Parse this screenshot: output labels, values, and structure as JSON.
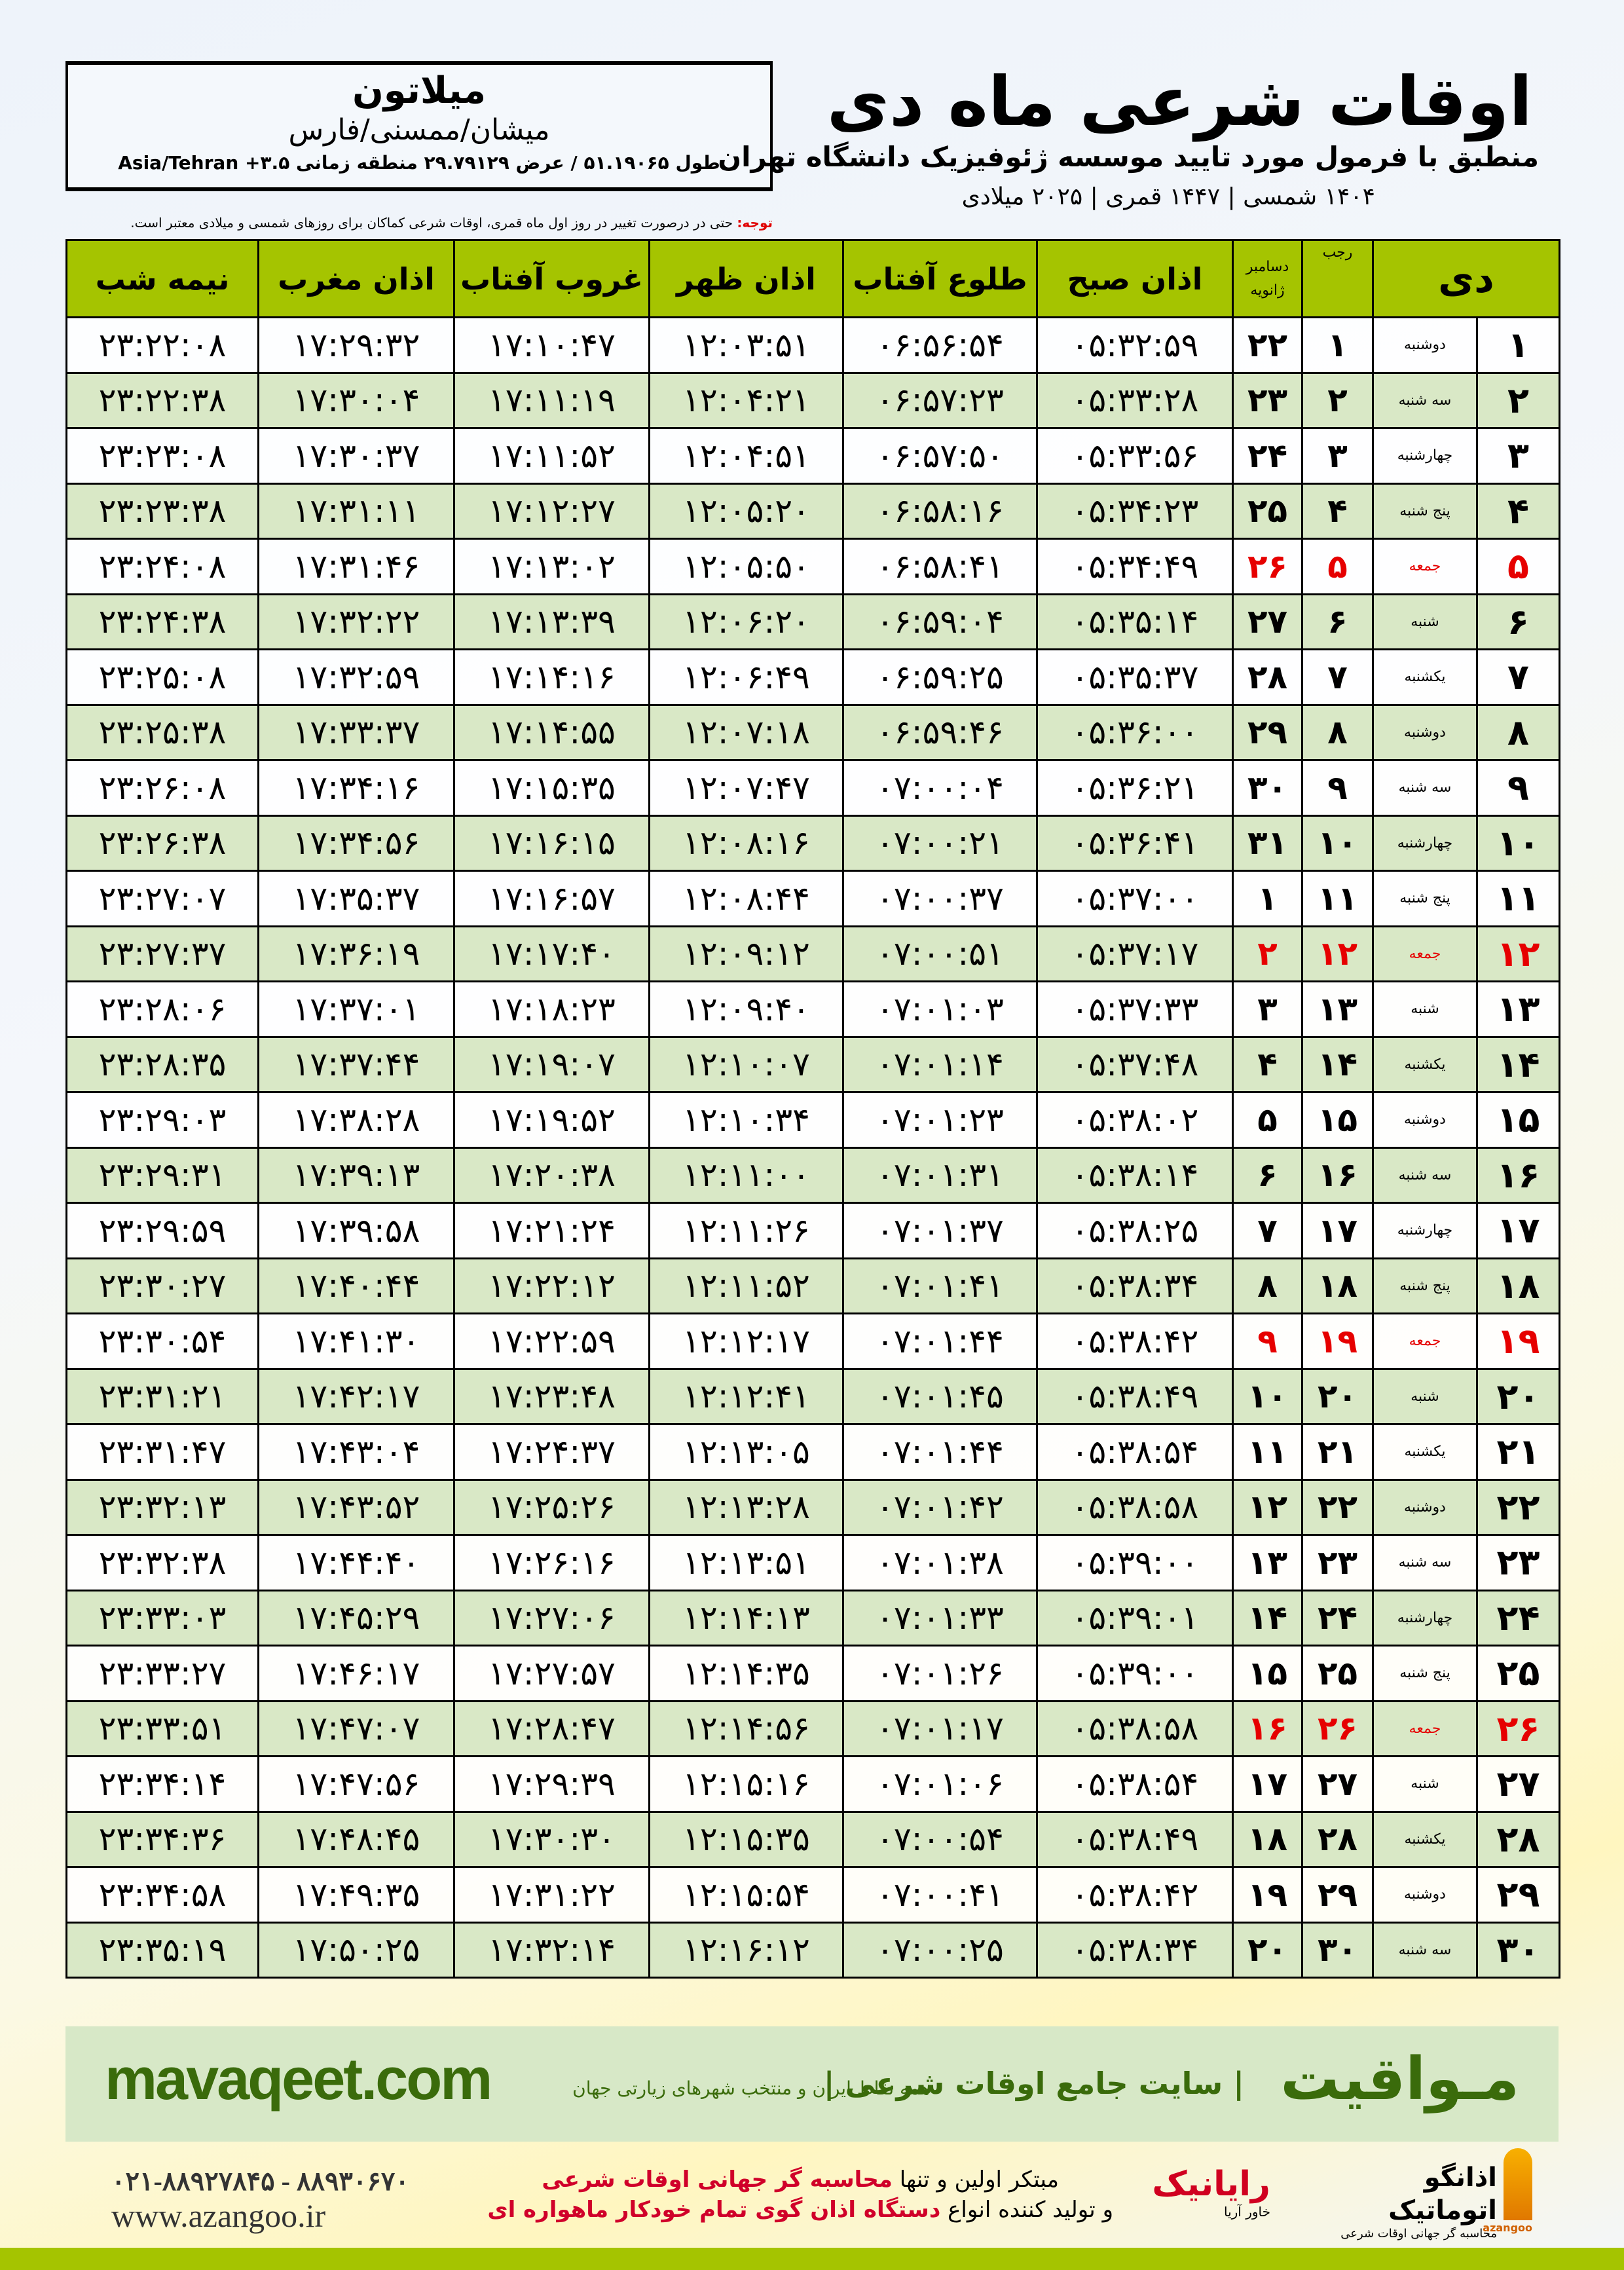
{
  "location": {
    "city": "میلاتون",
    "region": "میشان/ممسنی/فارس",
    "coords": "طول ۵۱.۱۹۰۶۵ / عرض ۲۹.۷۹۱۲۹ منطقه زمانی ۳.۵+ Asia/Tehran"
  },
  "header": {
    "title": "اوقات شرعی ماه دی",
    "subtitle": "منطبق با فرمول مورد تایید موسسه ژئوفیزیک دانشگاه تهران",
    "dateline": "۱۴۰۴ شمسی | ۱۴۴۷ قمری | ۲۰۲۵ میلادی"
  },
  "note": {
    "label": "توجه:",
    "text": " حتی در درصورت تغییر در روز اول ماه قمری، اوقات شرعی کماکان برای روزهای شمسی و میلادی معتبر است."
  },
  "columns": {
    "day": "دی",
    "rajab": "رجب",
    "dec": "دسامبر",
    "jan": "ژانویه",
    "fajr": "اذان صبح",
    "sunrise": "طلوع آفتاب",
    "dhuhr": "اذان ظهر",
    "sunset": "غروب آفتاب",
    "maghrib": "اذان مغرب",
    "midnight": "نیمه شب"
  },
  "colors": {
    "header": "#a5c400",
    "friday": "#e60000",
    "row_alt": "#d9e8c6"
  },
  "rows": [
    [
      "۱",
      "دوشنبه",
      "۱",
      "۲۲",
      "۰۵:۳۲:۵۹",
      "۰۶:۵۶:۵۴",
      "۱۲:۰۳:۵۱",
      "۱۷:۱۰:۴۷",
      "۱۷:۲۹:۳۲",
      "۲۳:۲۲:۰۸"
    ],
    [
      "۲",
      "سه شنبه",
      "۲",
      "۲۳",
      "۰۵:۳۳:۲۸",
      "۰۶:۵۷:۲۳",
      "۱۲:۰۴:۲۱",
      "۱۷:۱۱:۱۹",
      "۱۷:۳۰:۰۴",
      "۲۳:۲۲:۳۸"
    ],
    [
      "۳",
      "چهارشنبه",
      "۳",
      "۲۴",
      "۰۵:۳۳:۵۶",
      "۰۶:۵۷:۵۰",
      "۱۲:۰۴:۵۱",
      "۱۷:۱۱:۵۲",
      "۱۷:۳۰:۳۷",
      "۲۳:۲۳:۰۸"
    ],
    [
      "۴",
      "پنج شنبه",
      "۴",
      "۲۵",
      "۰۵:۳۴:۲۳",
      "۰۶:۵۸:۱۶",
      "۱۲:۰۵:۲۰",
      "۱۷:۱۲:۲۷",
      "۱۷:۳۱:۱۱",
      "۲۳:۲۳:۳۸"
    ],
    [
      "۵",
      "جمعه",
      "۵",
      "۲۶",
      "۰۵:۳۴:۴۹",
      "۰۶:۵۸:۴۱",
      "۱۲:۰۵:۵۰",
      "۱۷:۱۳:۰۲",
      "۱۷:۳۱:۴۶",
      "۲۳:۲۴:۰۸"
    ],
    [
      "۶",
      "شنبه",
      "۶",
      "۲۷",
      "۰۵:۳۵:۱۴",
      "۰۶:۵۹:۰۴",
      "۱۲:۰۶:۲۰",
      "۱۷:۱۳:۳۹",
      "۱۷:۳۲:۲۲",
      "۲۳:۲۴:۳۸"
    ],
    [
      "۷",
      "یکشنبه",
      "۷",
      "۲۸",
      "۰۵:۳۵:۳۷",
      "۰۶:۵۹:۲۵",
      "۱۲:۰۶:۴۹",
      "۱۷:۱۴:۱۶",
      "۱۷:۳۲:۵۹",
      "۲۳:۲۵:۰۸"
    ],
    [
      "۸",
      "دوشنبه",
      "۸",
      "۲۹",
      "۰۵:۳۶:۰۰",
      "۰۶:۵۹:۴۶",
      "۱۲:۰۷:۱۸",
      "۱۷:۱۴:۵۵",
      "۱۷:۳۳:۳۷",
      "۲۳:۲۵:۳۸"
    ],
    [
      "۹",
      "سه شنبه",
      "۹",
      "۳۰",
      "۰۵:۳۶:۲۱",
      "۰۷:۰۰:۰۴",
      "۱۲:۰۷:۴۷",
      "۱۷:۱۵:۳۵",
      "۱۷:۳۴:۱۶",
      "۲۳:۲۶:۰۸"
    ],
    [
      "۱۰",
      "چهارشنبه",
      "۱۰",
      "۳۱",
      "۰۵:۳۶:۴۱",
      "۰۷:۰۰:۲۱",
      "۱۲:۰۸:۱۶",
      "۱۷:۱۶:۱۵",
      "۱۷:۳۴:۵۶",
      "۲۳:۲۶:۳۸"
    ],
    [
      "۱۱",
      "پنج شنبه",
      "۱۱",
      "۱",
      "۰۵:۳۷:۰۰",
      "۰۷:۰۰:۳۷",
      "۱۲:۰۸:۴۴",
      "۱۷:۱۶:۵۷",
      "۱۷:۳۵:۳۷",
      "۲۳:۲۷:۰۷"
    ],
    [
      "۱۲",
      "جمعه",
      "۱۲",
      "۲",
      "۰۵:۳۷:۱۷",
      "۰۷:۰۰:۵۱",
      "۱۲:۰۹:۱۲",
      "۱۷:۱۷:۴۰",
      "۱۷:۳۶:۱۹",
      "۲۳:۲۷:۳۷"
    ],
    [
      "۱۳",
      "شنبه",
      "۱۳",
      "۳",
      "۰۵:۳۷:۳۳",
      "۰۷:۰۱:۰۳",
      "۱۲:۰۹:۴۰",
      "۱۷:۱۸:۲۳",
      "۱۷:۳۷:۰۱",
      "۲۳:۲۸:۰۶"
    ],
    [
      "۱۴",
      "یکشنبه",
      "۱۴",
      "۴",
      "۰۵:۳۷:۴۸",
      "۰۷:۰۱:۱۴",
      "۱۲:۱۰:۰۷",
      "۱۷:۱۹:۰۷",
      "۱۷:۳۷:۴۴",
      "۲۳:۲۸:۳۵"
    ],
    [
      "۱۵",
      "دوشنبه",
      "۱۵",
      "۵",
      "۰۵:۳۸:۰۲",
      "۰۷:۰۱:۲۳",
      "۱۲:۱۰:۳۴",
      "۱۷:۱۹:۵۲",
      "۱۷:۳۸:۲۸",
      "۲۳:۲۹:۰۳"
    ],
    [
      "۱۶",
      "سه شنبه",
      "۱۶",
      "۶",
      "۰۵:۳۸:۱۴",
      "۰۷:۰۱:۳۱",
      "۱۲:۱۱:۰۰",
      "۱۷:۲۰:۳۸",
      "۱۷:۳۹:۱۳",
      "۲۳:۲۹:۳۱"
    ],
    [
      "۱۷",
      "چهارشنبه",
      "۱۷",
      "۷",
      "۰۵:۳۸:۲۵",
      "۰۷:۰۱:۳۷",
      "۱۲:۱۱:۲۶",
      "۱۷:۲۱:۲۴",
      "۱۷:۳۹:۵۸",
      "۲۳:۲۹:۵۹"
    ],
    [
      "۱۸",
      "پنج شنبه",
      "۱۸",
      "۸",
      "۰۵:۳۸:۳۴",
      "۰۷:۰۱:۴۱",
      "۱۲:۱۱:۵۲",
      "۱۷:۲۲:۱۲",
      "۱۷:۴۰:۴۴",
      "۲۳:۳۰:۲۷"
    ],
    [
      "۱۹",
      "جمعه",
      "۱۹",
      "۹",
      "۰۵:۳۸:۴۲",
      "۰۷:۰۱:۴۴",
      "۱۲:۱۲:۱۷",
      "۱۷:۲۲:۵۹",
      "۱۷:۴۱:۳۰",
      "۲۳:۳۰:۵۴"
    ],
    [
      "۲۰",
      "شنبه",
      "۲۰",
      "۱۰",
      "۰۵:۳۸:۴۹",
      "۰۷:۰۱:۴۵",
      "۱۲:۱۲:۴۱",
      "۱۷:۲۳:۴۸",
      "۱۷:۴۲:۱۷",
      "۲۳:۳۱:۲۱"
    ],
    [
      "۲۱",
      "یکشنبه",
      "۲۱",
      "۱۱",
      "۰۵:۳۸:۵۴",
      "۰۷:۰۱:۴۴",
      "۱۲:۱۳:۰۵",
      "۱۷:۲۴:۳۷",
      "۱۷:۴۳:۰۴",
      "۲۳:۳۱:۴۷"
    ],
    [
      "۲۲",
      "دوشنبه",
      "۲۲",
      "۱۲",
      "۰۵:۳۸:۵۸",
      "۰۷:۰۱:۴۲",
      "۱۲:۱۳:۲۸",
      "۱۷:۲۵:۲۶",
      "۱۷:۴۳:۵۲",
      "۲۳:۳۲:۱۳"
    ],
    [
      "۲۳",
      "سه شنبه",
      "۲۳",
      "۱۳",
      "۰۵:۳۹:۰۰",
      "۰۷:۰۱:۳۸",
      "۱۲:۱۳:۵۱",
      "۱۷:۲۶:۱۶",
      "۱۷:۴۴:۴۰",
      "۲۳:۳۲:۳۸"
    ],
    [
      "۲۴",
      "چهارشنبه",
      "۲۴",
      "۱۴",
      "۰۵:۳۹:۰۱",
      "۰۷:۰۱:۳۳",
      "۱۲:۱۴:۱۳",
      "۱۷:۲۷:۰۶",
      "۱۷:۴۵:۲۹",
      "۲۳:۳۳:۰۳"
    ],
    [
      "۲۵",
      "پنج شنبه",
      "۲۵",
      "۱۵",
      "۰۵:۳۹:۰۰",
      "۰۷:۰۱:۲۶",
      "۱۲:۱۴:۳۵",
      "۱۷:۲۷:۵۷",
      "۱۷:۴۶:۱۷",
      "۲۳:۳۳:۲۷"
    ],
    [
      "۲۶",
      "جمعه",
      "۲۶",
      "۱۶",
      "۰۵:۳۸:۵۸",
      "۰۷:۰۱:۱۷",
      "۱۲:۱۴:۵۶",
      "۱۷:۲۸:۴۷",
      "۱۷:۴۷:۰۷",
      "۲۳:۳۳:۵۱"
    ],
    [
      "۲۷",
      "شنبه",
      "۲۷",
      "۱۷",
      "۰۵:۳۸:۵۴",
      "۰۷:۰۱:۰۶",
      "۱۲:۱۵:۱۶",
      "۱۷:۲۹:۳۹",
      "۱۷:۴۷:۵۶",
      "۲۳:۳۴:۱۴"
    ],
    [
      "۲۸",
      "یکشنبه",
      "۲۸",
      "۱۸",
      "۰۵:۳۸:۴۹",
      "۰۷:۰۰:۵۴",
      "۱۲:۱۵:۳۵",
      "۱۷:۳۰:۳۰",
      "۱۷:۴۸:۴۵",
      "۲۳:۳۴:۳۶"
    ],
    [
      "۲۹",
      "دوشنبه",
      "۲۹",
      "۱۹",
      "۰۵:۳۸:۴۲",
      "۰۷:۰۰:۴۱",
      "۱۲:۱۵:۵۴",
      "۱۷:۳۱:۲۲",
      "۱۷:۴۹:۳۵",
      "۲۳:۳۴:۵۸"
    ],
    [
      "۳۰",
      "سه شنبه",
      "۳۰",
      "۲۰",
      "۰۵:۳۸:۳۴",
      "۰۷:۰۰:۲۵",
      "۱۲:۱۶:۱۲",
      "۱۷:۳۲:۱۴",
      "۱۷:۵۰:۲۵",
      "۲۳:۳۵:۱۹"
    ]
  ],
  "banner": {
    "brand": "مـواقیت",
    "slogan": "| سایت جامع اوقات شرعی |",
    "slogan2": "همه نقاط ایران و منتخب شهرهای زیارتی جهان",
    "site": "mavaqeet.com"
  },
  "footer": {
    "logo_azangoo": "اذانگو اتوماتیک",
    "logo_azangoo_sub": "محاسبه گر جهانی اوقات شرعی",
    "logo_azangoo_en": "azangoo",
    "logo_rayanik": "رایانیک",
    "logo_rayanik_sub": "خاور آریا",
    "tag_line1_a": "مبتکر اولین و تنها ",
    "tag_line1_b": "محاسبه گر جهانی اوقات شرعی",
    "tag_line2_a": "و تولید کننده انواع ",
    "tag_line2_b": "دستگاه اذان گوی تمام خودکار ماهواره ای",
    "phone": "۰۲۱-۸۸۹۲۷۸۴۵ - ۸۸۹۳۰۶۷۰",
    "website": "www.azangoo.ir"
  }
}
